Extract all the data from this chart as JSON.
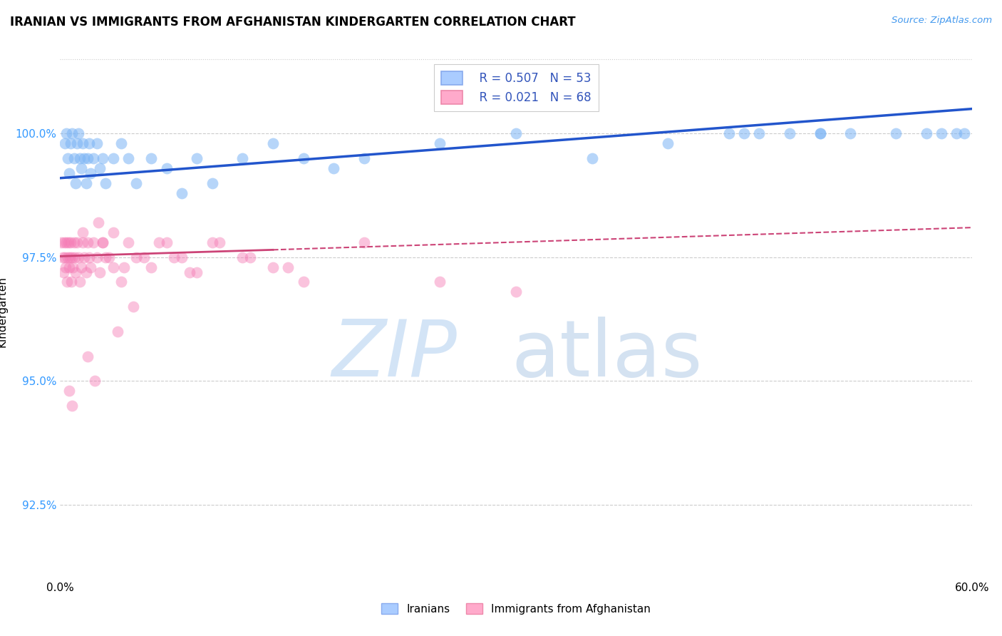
{
  "title": "IRANIAN VS IMMIGRANTS FROM AFGHANISTAN KINDERGARTEN CORRELATION CHART",
  "source_text": "Source: ZipAtlas.com",
  "ylabel": "Kindergarten",
  "ytick_values": [
    92.5,
    95.0,
    97.5,
    100.0
  ],
  "xlim": [
    0.0,
    60.0
  ],
  "ylim": [
    91.0,
    101.8
  ],
  "legend_label_blue": "Iranians",
  "legend_label_pink": "Immigrants from Afghanistan",
  "blue_color": "#7ab4f5",
  "pink_color": "#f57ab4",
  "trend_blue_color": "#2255cc",
  "trend_pink_solid_color": "#cc4477",
  "trend_pink_dash_color": "#cc4477",
  "blue_R": "0.507",
  "blue_N": "53",
  "pink_R": "0.021",
  "pink_N": "68",
  "blue_scatter_x": [
    0.3,
    0.4,
    0.5,
    0.6,
    0.7,
    0.8,
    0.9,
    1.0,
    1.1,
    1.2,
    1.3,
    1.4,
    1.5,
    1.6,
    1.7,
    1.8,
    1.9,
    2.0,
    2.2,
    2.4,
    2.6,
    2.8,
    3.0,
    3.5,
    4.0,
    4.5,
    5.0,
    6.0,
    7.0,
    8.0,
    9.0,
    10.0,
    12.0,
    14.0,
    16.0,
    18.0,
    20.0,
    25.0,
    30.0,
    35.0,
    40.0,
    45.0,
    50.0,
    55.0,
    57.0,
    58.0,
    59.0,
    59.5,
    50.0,
    48.0,
    52.0,
    46.0,
    44.0
  ],
  "blue_scatter_y": [
    99.8,
    100.0,
    99.5,
    99.2,
    99.8,
    100.0,
    99.5,
    99.0,
    99.8,
    100.0,
    99.5,
    99.3,
    99.8,
    99.5,
    99.0,
    99.5,
    99.8,
    99.2,
    99.5,
    99.8,
    99.3,
    99.5,
    99.0,
    99.5,
    99.8,
    99.5,
    99.0,
    99.5,
    99.3,
    98.8,
    99.5,
    99.0,
    99.5,
    99.8,
    99.5,
    99.3,
    99.5,
    99.8,
    100.0,
    99.5,
    99.8,
    100.0,
    100.0,
    100.0,
    100.0,
    100.0,
    100.0,
    100.0,
    100.0,
    100.0,
    100.0,
    100.0,
    100.0
  ],
  "pink_scatter_x": [
    0.1,
    0.15,
    0.2,
    0.25,
    0.3,
    0.35,
    0.4,
    0.45,
    0.5,
    0.55,
    0.6,
    0.65,
    0.7,
    0.75,
    0.8,
    0.85,
    0.9,
    0.95,
    1.0,
    1.1,
    1.2,
    1.3,
    1.4,
    1.5,
    1.6,
    1.7,
    1.8,
    1.9,
    2.0,
    2.2,
    2.4,
    2.6,
    2.8,
    3.0,
    3.5,
    4.0,
    5.0,
    6.0,
    7.0,
    8.0,
    9.0,
    10.0,
    12.0,
    14.0,
    16.0,
    3.5,
    4.5,
    5.5,
    2.5,
    1.5,
    2.8,
    3.2,
    4.2,
    6.5,
    7.5,
    8.5,
    10.5,
    12.5,
    15.0,
    20.0,
    25.0,
    30.0,
    4.8,
    3.8,
    1.8,
    2.3,
    0.6,
    0.8
  ],
  "pink_scatter_y": [
    97.8,
    97.5,
    97.2,
    97.8,
    97.5,
    97.3,
    97.8,
    97.0,
    97.5,
    97.8,
    97.3,
    97.5,
    97.8,
    97.0,
    97.5,
    97.3,
    97.8,
    97.5,
    97.2,
    97.8,
    97.5,
    97.0,
    97.3,
    97.8,
    97.5,
    97.2,
    97.8,
    97.5,
    97.3,
    97.8,
    97.5,
    97.2,
    97.8,
    97.5,
    97.3,
    97.0,
    97.5,
    97.3,
    97.8,
    97.5,
    97.2,
    97.8,
    97.5,
    97.3,
    97.0,
    98.0,
    97.8,
    97.5,
    98.2,
    98.0,
    97.8,
    97.5,
    97.3,
    97.8,
    97.5,
    97.2,
    97.8,
    97.5,
    97.3,
    97.8,
    97.0,
    96.8,
    96.5,
    96.0,
    95.5,
    95.0,
    94.8,
    94.5
  ],
  "blue_trend_x0": 0,
  "blue_trend_x1": 60,
  "blue_trend_y0": 99.1,
  "blue_trend_y1": 100.5,
  "pink_solid_x0": 0,
  "pink_solid_x1": 14,
  "pink_solid_y0": 97.52,
  "pink_solid_y1": 97.65,
  "pink_dash_x0": 14,
  "pink_dash_x1": 60,
  "pink_dash_y0": 97.65,
  "pink_dash_y1": 98.1
}
